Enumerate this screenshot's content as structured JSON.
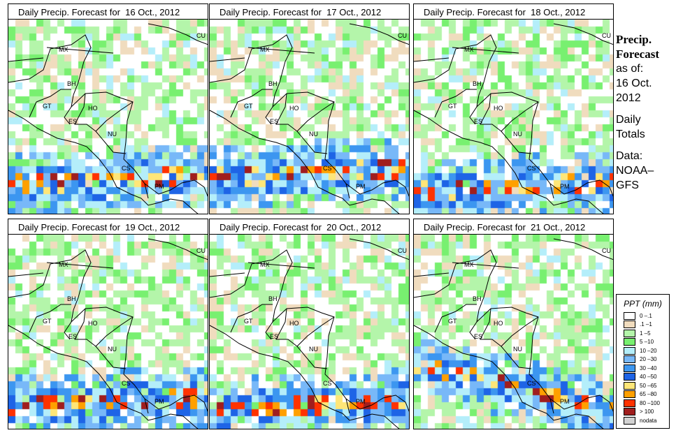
{
  "title_prefix": "Daily Precip. Forecast for",
  "panels": [
    {
      "title": "Daily Precip. Forecast for  16 Oct., 2012",
      "seed": 1
    },
    {
      "title": "Daily Precip. Forecast for  17 Oct., 2012",
      "seed": 2
    },
    {
      "title": "Daily Precip. Forecast for  18 Oct., 2012",
      "seed": 3
    },
    {
      "title": "Daily Precip. Forecast for  19 Oct., 2012",
      "seed": 4
    },
    {
      "title": "Daily Precip. Forecast for  20 Oct., 2012",
      "seed": 5
    },
    {
      "title": "Daily Precip. Forecast for  21 Oct., 2012",
      "seed": 6
    }
  ],
  "country_labels": [
    "MX",
    "CU",
    "BH",
    "GT",
    "HO",
    "ES",
    "NU",
    "CS",
    "PM"
  ],
  "side": {
    "line1": "Precip.",
    "line2": "Forecast",
    "line3": "as of:",
    "line4": "16 Oct.",
    "line5": "2012",
    "line6": "Daily",
    "line7": "Totals",
    "line8": "Data:",
    "line9": "NOAA–",
    "line10": "GFS"
  },
  "legend": {
    "title": "PPT (mm)",
    "items": [
      {
        "label": "0 –.1",
        "color": "#ffffff"
      },
      {
        "label": ".1 –1",
        "color": "#f0dcbe"
      },
      {
        "label": "1 –5",
        "color": "#b4f5aa"
      },
      {
        "label": "5 –10",
        "color": "#78f070"
      },
      {
        "label": "10 –20",
        "color": "#b4eefa"
      },
      {
        "label": "20 –30",
        "color": "#78b8f8"
      },
      {
        "label": "30 –40",
        "color": "#3c96f0"
      },
      {
        "label": "40 –50",
        "color": "#1e64e6"
      },
      {
        "label": "50 –65",
        "color": "#ffe678"
      },
      {
        "label": "65 –80",
        "color": "#ffa000"
      },
      {
        "label": "80 –100",
        "color": "#ff3200"
      },
      {
        "label": "> 100",
        "color": "#a01e1e"
      },
      {
        "label": "nodata",
        "color": "#d2d2d2"
      }
    ]
  }
}
